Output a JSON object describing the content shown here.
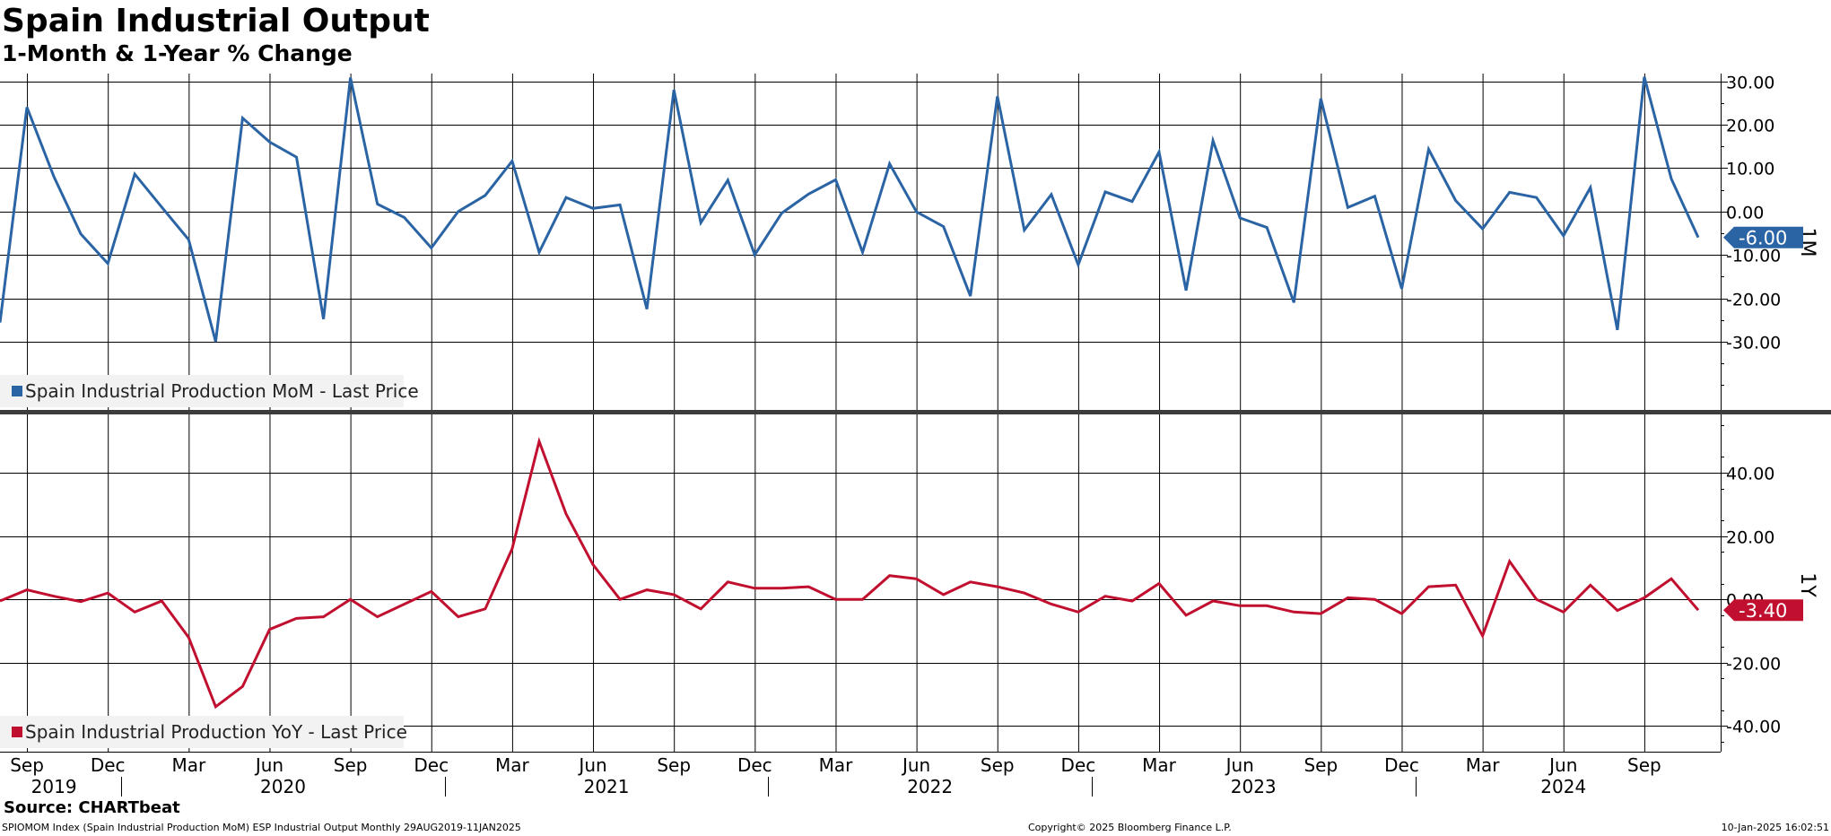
{
  "title": "Spain Industrial Output",
  "subtitle": "1-Month & 1-Year % Change",
  "source": "Source: CHARTbeat",
  "footer": {
    "left": "SPIOMOM Index (Spain Industrial Production MoM) ESP Industrial Output  Monthly 29AUG2019-11JAN2025",
    "center": "Copyright© 2025 Bloomberg Finance L.P.",
    "right": "10-Jan-2025 16:02:51"
  },
  "colors": {
    "mom": "#2a64a4",
    "yoy": "#c1102f",
    "grid": "#000000",
    "legend_bg": "#f2f2f2"
  },
  "chart_data": [
    {
      "type": "line",
      "panel_label": "1M",
      "legend": "Spain Industrial Production MoM - Last Price",
      "last_value_label": "-6.00",
      "ylim": [
        -40,
        40
      ],
      "yticks": [
        30,
        20,
        10,
        0,
        -10,
        -20,
        -30
      ],
      "ytick_labels": [
        "30.00",
        "20.00",
        "10.00",
        "0.00",
        "-10.00",
        "-20.00",
        "-30.00"
      ],
      "x": [
        "2019-08",
        "2019-09",
        "2019-10",
        "2019-11",
        "2019-12",
        "2020-01",
        "2020-02",
        "2020-03",
        "2020-04",
        "2020-05",
        "2020-06",
        "2020-07",
        "2020-08",
        "2020-09",
        "2020-10",
        "2020-11",
        "2020-12",
        "2021-01",
        "2021-02",
        "2021-03",
        "2021-04",
        "2021-05",
        "2021-06",
        "2021-07",
        "2021-08",
        "2021-09",
        "2021-10",
        "2021-11",
        "2021-12",
        "2022-01",
        "2022-02",
        "2022-03",
        "2022-04",
        "2022-05",
        "2022-06",
        "2022-07",
        "2022-08",
        "2022-09",
        "2022-10",
        "2022-11",
        "2022-12",
        "2023-01",
        "2023-02",
        "2023-03",
        "2023-04",
        "2023-05",
        "2023-06",
        "2023-07",
        "2023-08",
        "2023-09",
        "2023-10",
        "2023-11",
        "2023-12",
        "2024-01",
        "2024-02",
        "2024-03",
        "2024-04",
        "2024-05",
        "2024-06",
        "2024-07",
        "2024-08",
        "2024-09",
        "2024-10",
        "2024-11"
      ],
      "series": [
        {
          "values": [
            -25.6,
            24.0,
            8.0,
            -5.2,
            -12.0,
            8.6,
            1.0,
            -6.5,
            -30.0,
            21.5,
            16.0,
            12.5,
            -24.8,
            30.8,
            1.7,
            -1.4,
            -8.4,
            0.0,
            3.7,
            11.6,
            -9.4,
            3.2,
            0.7,
            1.5,
            -22.5,
            28.0,
            -2.6,
            7.2,
            -10.0,
            -0.4,
            4.0,
            7.3,
            -9.4,
            11.0,
            -0.1,
            -3.5,
            -19.5,
            26.5,
            -4.3,
            3.9,
            -12.3,
            4.5,
            2.3,
            13.7,
            -18.2,
            16.3,
            -1.5,
            -3.7,
            -21.0,
            26.0,
            0.9,
            3.5,
            -17.8,
            14.3,
            2.5,
            -4.0,
            4.4,
            3.2,
            -5.6,
            5.5,
            -27.3,
            31.0,
            7.5,
            -6.0
          ]
        }
      ]
    },
    {
      "type": "line",
      "panel_label": "1Y",
      "legend": "Spain Industrial Production YoY - Last Price",
      "last_value_label": "-3.40",
      "ylim": [
        -45,
        57
      ],
      "yticks": [
        40,
        20,
        0,
        -20,
        -40
      ],
      "ytick_labels": [
        "40.00",
        "20.00",
        "0.00",
        "-20.00",
        "-40.00"
      ],
      "x": [
        "2019-08",
        "2019-09",
        "2019-10",
        "2019-11",
        "2019-12",
        "2020-01",
        "2020-02",
        "2020-03",
        "2020-04",
        "2020-05",
        "2020-06",
        "2020-07",
        "2020-08",
        "2020-09",
        "2020-10",
        "2020-11",
        "2020-12",
        "2021-01",
        "2021-02",
        "2021-03",
        "2021-04",
        "2021-05",
        "2021-06",
        "2021-07",
        "2021-08",
        "2021-09",
        "2021-10",
        "2021-11",
        "2021-12",
        "2022-01",
        "2022-02",
        "2022-03",
        "2022-04",
        "2022-05",
        "2022-06",
        "2022-07",
        "2022-08",
        "2022-09",
        "2022-10",
        "2022-11",
        "2022-12",
        "2023-01",
        "2023-02",
        "2023-03",
        "2023-04",
        "2023-05",
        "2023-06",
        "2023-07",
        "2023-08",
        "2023-09",
        "2023-10",
        "2023-11",
        "2023-12",
        "2024-01",
        "2024-02",
        "2024-03",
        "2024-04",
        "2024-05",
        "2024-06",
        "2024-07",
        "2024-08",
        "2024-09",
        "2024-10",
        "2024-11"
      ],
      "series": [
        {
          "values": [
            -0.5,
            3.0,
            1.0,
            -0.7,
            2.0,
            -4.0,
            -0.5,
            -12.0,
            -33.9,
            -27.5,
            -9.5,
            -6.0,
            -5.5,
            0.0,
            -5.5,
            -1.5,
            2.5,
            -5.5,
            -3.0,
            16.0,
            49.9,
            27.0,
            11.0,
            0.0,
            3.0,
            1.5,
            -3.0,
            5.5,
            3.5,
            3.5,
            4.0,
            0.0,
            0.0,
            7.5,
            6.5,
            1.5,
            5.5,
            4.0,
            2.0,
            -1.5,
            -4.0,
            1.0,
            -0.5,
            5.0,
            -5.0,
            -0.5,
            -2.0,
            -2.0,
            -4.0,
            -4.5,
            0.5,
            0.0,
            -4.5,
            4.0,
            4.5,
            -11.5,
            12.0,
            0.0,
            -4.0,
            4.5,
            -3.5,
            0.5,
            6.5,
            -3.4
          ]
        }
      ]
    }
  ],
  "x_axis": {
    "months": [
      {
        "date": "2019-09",
        "label": "Sep"
      },
      {
        "date": "2019-12",
        "label": "Dec"
      },
      {
        "date": "2020-03",
        "label": "Mar"
      },
      {
        "date": "2020-06",
        "label": "Jun"
      },
      {
        "date": "2020-09",
        "label": "Sep"
      },
      {
        "date": "2020-12",
        "label": "Dec"
      },
      {
        "date": "2021-03",
        "label": "Mar"
      },
      {
        "date": "2021-06",
        "label": "Jun"
      },
      {
        "date": "2021-09",
        "label": "Sep"
      },
      {
        "date": "2021-12",
        "label": "Dec"
      },
      {
        "date": "2022-03",
        "label": "Mar"
      },
      {
        "date": "2022-06",
        "label": "Jun"
      },
      {
        "date": "2022-09",
        "label": "Sep"
      },
      {
        "date": "2022-12",
        "label": "Dec"
      },
      {
        "date": "2023-03",
        "label": "Mar"
      },
      {
        "date": "2023-06",
        "label": "Jun"
      },
      {
        "date": "2023-09",
        "label": "Sep"
      },
      {
        "date": "2023-12",
        "label": "Dec"
      },
      {
        "date": "2024-03",
        "label": "Mar"
      },
      {
        "date": "2024-06",
        "label": "Jun"
      },
      {
        "date": "2024-09",
        "label": "Sep"
      }
    ],
    "years": [
      {
        "date": "2019",
        "label": "2019"
      },
      {
        "date": "2020",
        "label": "2020"
      },
      {
        "date": "2021",
        "label": "2021"
      },
      {
        "date": "2022",
        "label": "2022"
      },
      {
        "date": "2023",
        "label": "2023"
      },
      {
        "date": "2024",
        "label": "2024"
      }
    ]
  }
}
